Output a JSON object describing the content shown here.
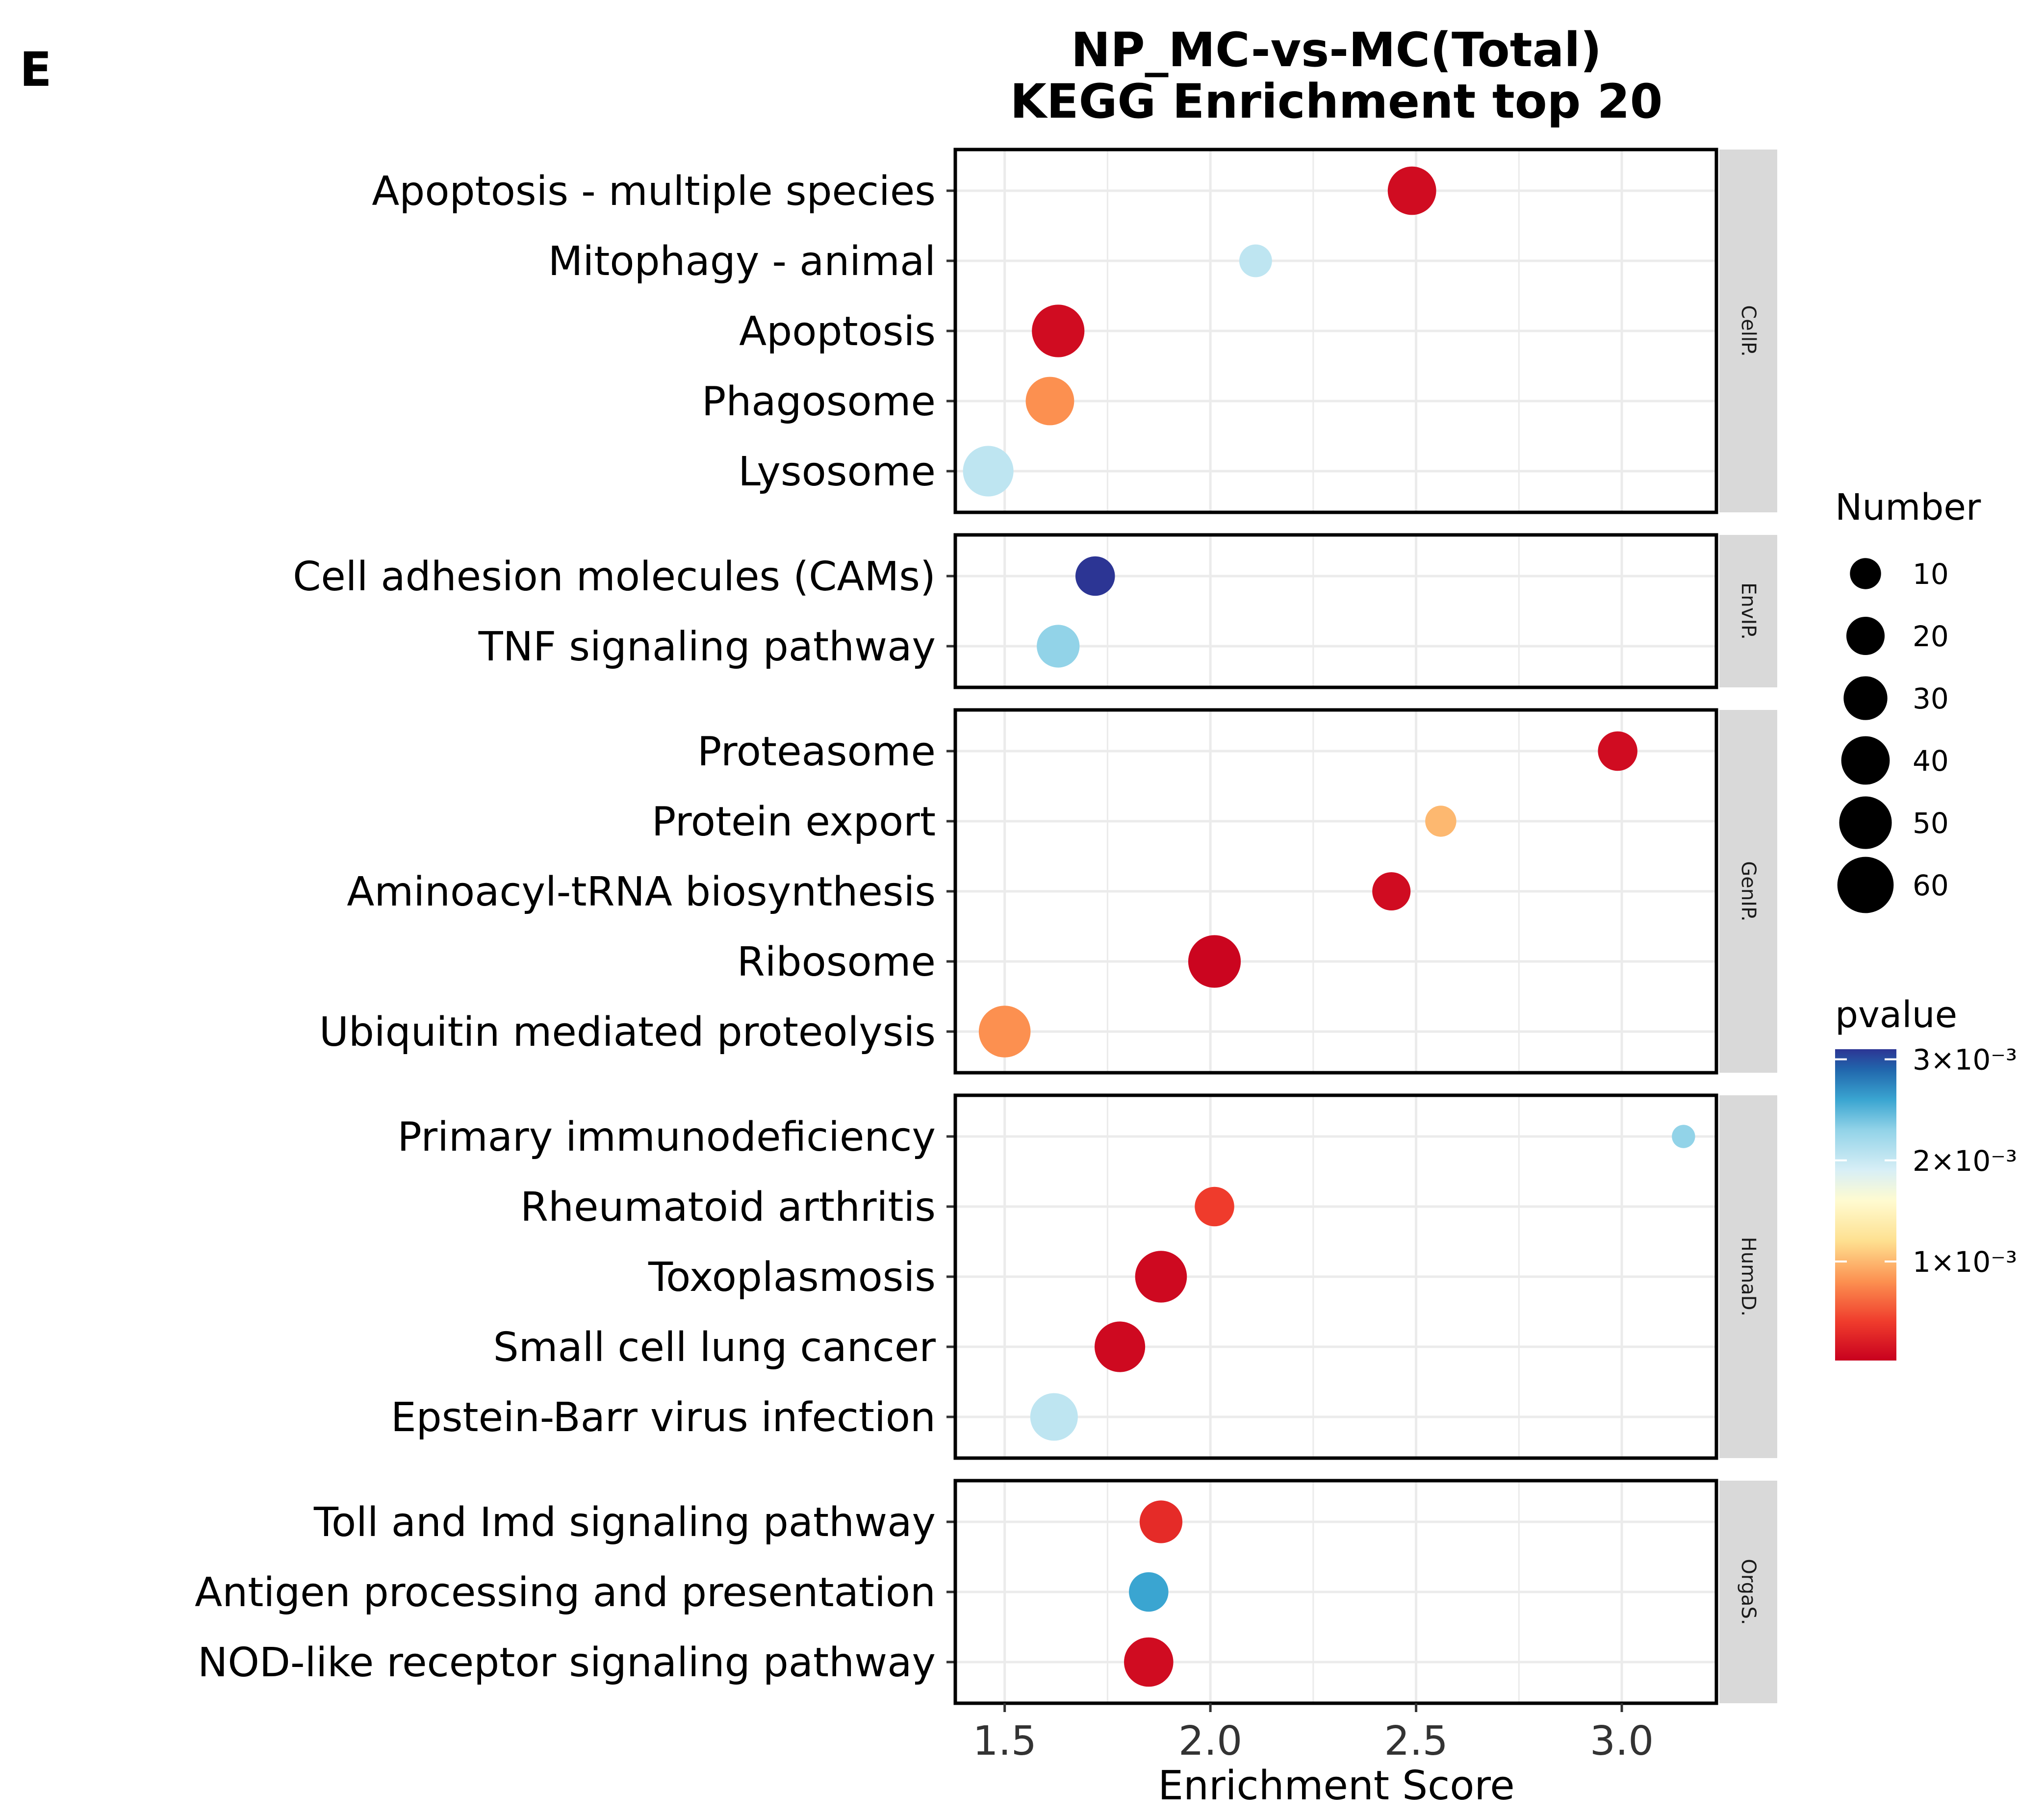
{
  "panel_label": "E",
  "chart_data": {
    "type": "scatter",
    "title": "NP_MC-vs-MC(Total)",
    "subtitle": "KEGG Enrichment top 20",
    "xlabel": "Enrichment Score",
    "ylabel": "",
    "xlim": [
      1.38,
      3.23
    ],
    "xticks": [
      1.5,
      2.0,
      2.5,
      3.0
    ],
    "xtick_labels": [
      "1.5",
      "2.0",
      "2.5",
      "3.0"
    ],
    "grid": true,
    "facets": [
      {
        "name": "CellP.",
        "points": [
          {
            "term": "Apoptosis - multiple species",
            "x": 2.49,
            "number": 40,
            "pvalue": 0.0001
          },
          {
            "term": "Mitophagy - animal",
            "x": 2.11,
            "number": 12,
            "pvalue": 0.00205
          },
          {
            "term": "Apoptosis",
            "x": 1.63,
            "number": 50,
            "pvalue": 0.0001
          },
          {
            "term": "Phagosome",
            "x": 1.61,
            "number": 40,
            "pvalue": 0.0008
          },
          {
            "term": "Lysosome",
            "x": 1.46,
            "number": 45,
            "pvalue": 0.00205
          }
        ]
      },
      {
        "name": "EnvIP.",
        "points": [
          {
            "term": "Cell adhesion molecules (CAMs)",
            "x": 1.72,
            "number": 22,
            "pvalue": 0.0031
          },
          {
            "term": "TNF signaling pathway",
            "x": 1.63,
            "number": 28,
            "pvalue": 0.0023
          }
        ]
      },
      {
        "name": "GenIP.",
        "points": [
          {
            "term": "Proteasome",
            "x": 2.99,
            "number": 22,
            "pvalue": 0.0001
          },
          {
            "term": "Protein export",
            "x": 2.56,
            "number": 10,
            "pvalue": 0.001
          },
          {
            "term": "Aminoacyl-tRNA biosynthesis",
            "x": 2.44,
            "number": 20,
            "pvalue": 0.0001
          },
          {
            "term": "Ribosome",
            "x": 2.01,
            "number": 50,
            "pvalue": 5e-05
          },
          {
            "term": "Ubiquitin mediated proteolysis",
            "x": 1.5,
            "number": 48,
            "pvalue": 0.0008
          }
        ]
      },
      {
        "name": "HumaD.",
        "points": [
          {
            "term": "Primary immunodeficiency",
            "x": 3.15,
            "number": 3,
            "pvalue": 0.0023
          },
          {
            "term": "Rheumatoid arthritis",
            "x": 2.01,
            "number": 22,
            "pvalue": 0.0004
          },
          {
            "term": "Toxoplasmosis",
            "x": 1.88,
            "number": 48,
            "pvalue": 8e-05
          },
          {
            "term": "Small cell lung cancer",
            "x": 1.78,
            "number": 45,
            "pvalue": 8e-05
          },
          {
            "term": "Epstein-Barr virus infection",
            "x": 1.62,
            "number": 38,
            "pvalue": 0.00205
          }
        ]
      },
      {
        "name": "OrgaS.",
        "points": [
          {
            "term": "Toll and Imd signaling pathway",
            "x": 1.88,
            "number": 28,
            "pvalue": 0.0003
          },
          {
            "term": "Antigen processing and presentation",
            "x": 1.85,
            "number": 22,
            "pvalue": 0.0026
          },
          {
            "term": "NOD-like receptor signaling pathway",
            "x": 1.85,
            "number": 42,
            "pvalue": 0.0001
          }
        ]
      }
    ],
    "size_legend": {
      "title": "Number",
      "values": [
        10,
        20,
        30,
        40,
        50,
        60
      ],
      "labels": [
        "10",
        "20",
        "30",
        "40",
        "50",
        "60"
      ]
    },
    "color_legend": {
      "title": "pvalue",
      "range": [
        2e-05,
        0.0031
      ],
      "tick_values": [
        0.001,
        0.002,
        0.003
      ],
      "tick_labels": [
        "1×10⁻³",
        "2×10⁻³",
        "3×10⁻³"
      ],
      "stops": [
        {
          "p": 2e-05,
          "color": "#c8001e"
        },
        {
          "p": 0.0004,
          "color": "#ef3b2c"
        },
        {
          "p": 0.0008,
          "color": "#fc9050"
        },
        {
          "p": 0.0012,
          "color": "#fee090"
        },
        {
          "p": 0.0016,
          "color": "#fffbd0"
        },
        {
          "p": 0.0019,
          "color": "#d8eff6"
        },
        {
          "p": 0.0023,
          "color": "#92d3e8"
        },
        {
          "p": 0.0026,
          "color": "#3aa5d1"
        },
        {
          "p": 0.0029,
          "color": "#2166ac"
        },
        {
          "p": 0.0031,
          "color": "#2c3594"
        }
      ]
    }
  }
}
